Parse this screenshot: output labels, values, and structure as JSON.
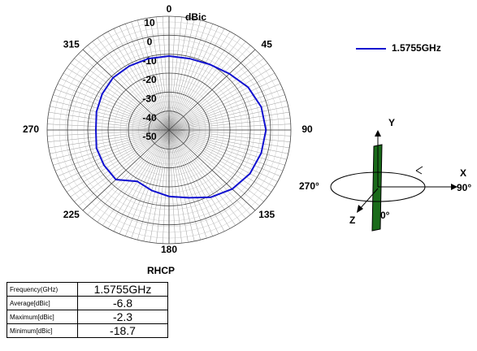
{
  "chart_data": {
    "type": "polar",
    "radial_label": "dBic",
    "theta": [
      0,
      15,
      30,
      45,
      60,
      75,
      90,
      105,
      120,
      135,
      150,
      165,
      180,
      195,
      210,
      225,
      240,
      255,
      270,
      285,
      300,
      315,
      330,
      345
    ],
    "series": [
      {
        "name": "1.5755GHz",
        "color": "#1010d0",
        "values": [
          -11,
          -11,
          -10,
          -8,
          -5,
          -3,
          -2.3,
          -3,
          -4,
          -6,
          -9,
          -13,
          -15,
          -17,
          -18.7,
          -13,
          -13,
          -13,
          -14,
          -13,
          -12,
          -11,
          -11,
          -11
        ]
      }
    ],
    "rlim": [
      -50,
      10
    ],
    "rticks": [
      10,
      0,
      -10,
      -20,
      -30,
      -40,
      -50
    ],
    "thetaticks": [
      0,
      45,
      90,
      135,
      180,
      225,
      270,
      315
    ],
    "grid": true,
    "legend": "upper right"
  },
  "orientation": {
    "y_axis": "Y",
    "x_axis": "X",
    "z_axis": "Z",
    "angle_left": "270°",
    "angle_right": "90°",
    "angle_front": "0°"
  },
  "table": {
    "title": "RHCP",
    "rows": [
      [
        "Frequency(GHz)",
        "1.5755GHz"
      ],
      [
        "Average[dBic]",
        -6.8
      ],
      [
        "Maximum[dBic]",
        -2.3
      ],
      [
        "Minimum[dBic]",
        -18.7
      ]
    ]
  }
}
